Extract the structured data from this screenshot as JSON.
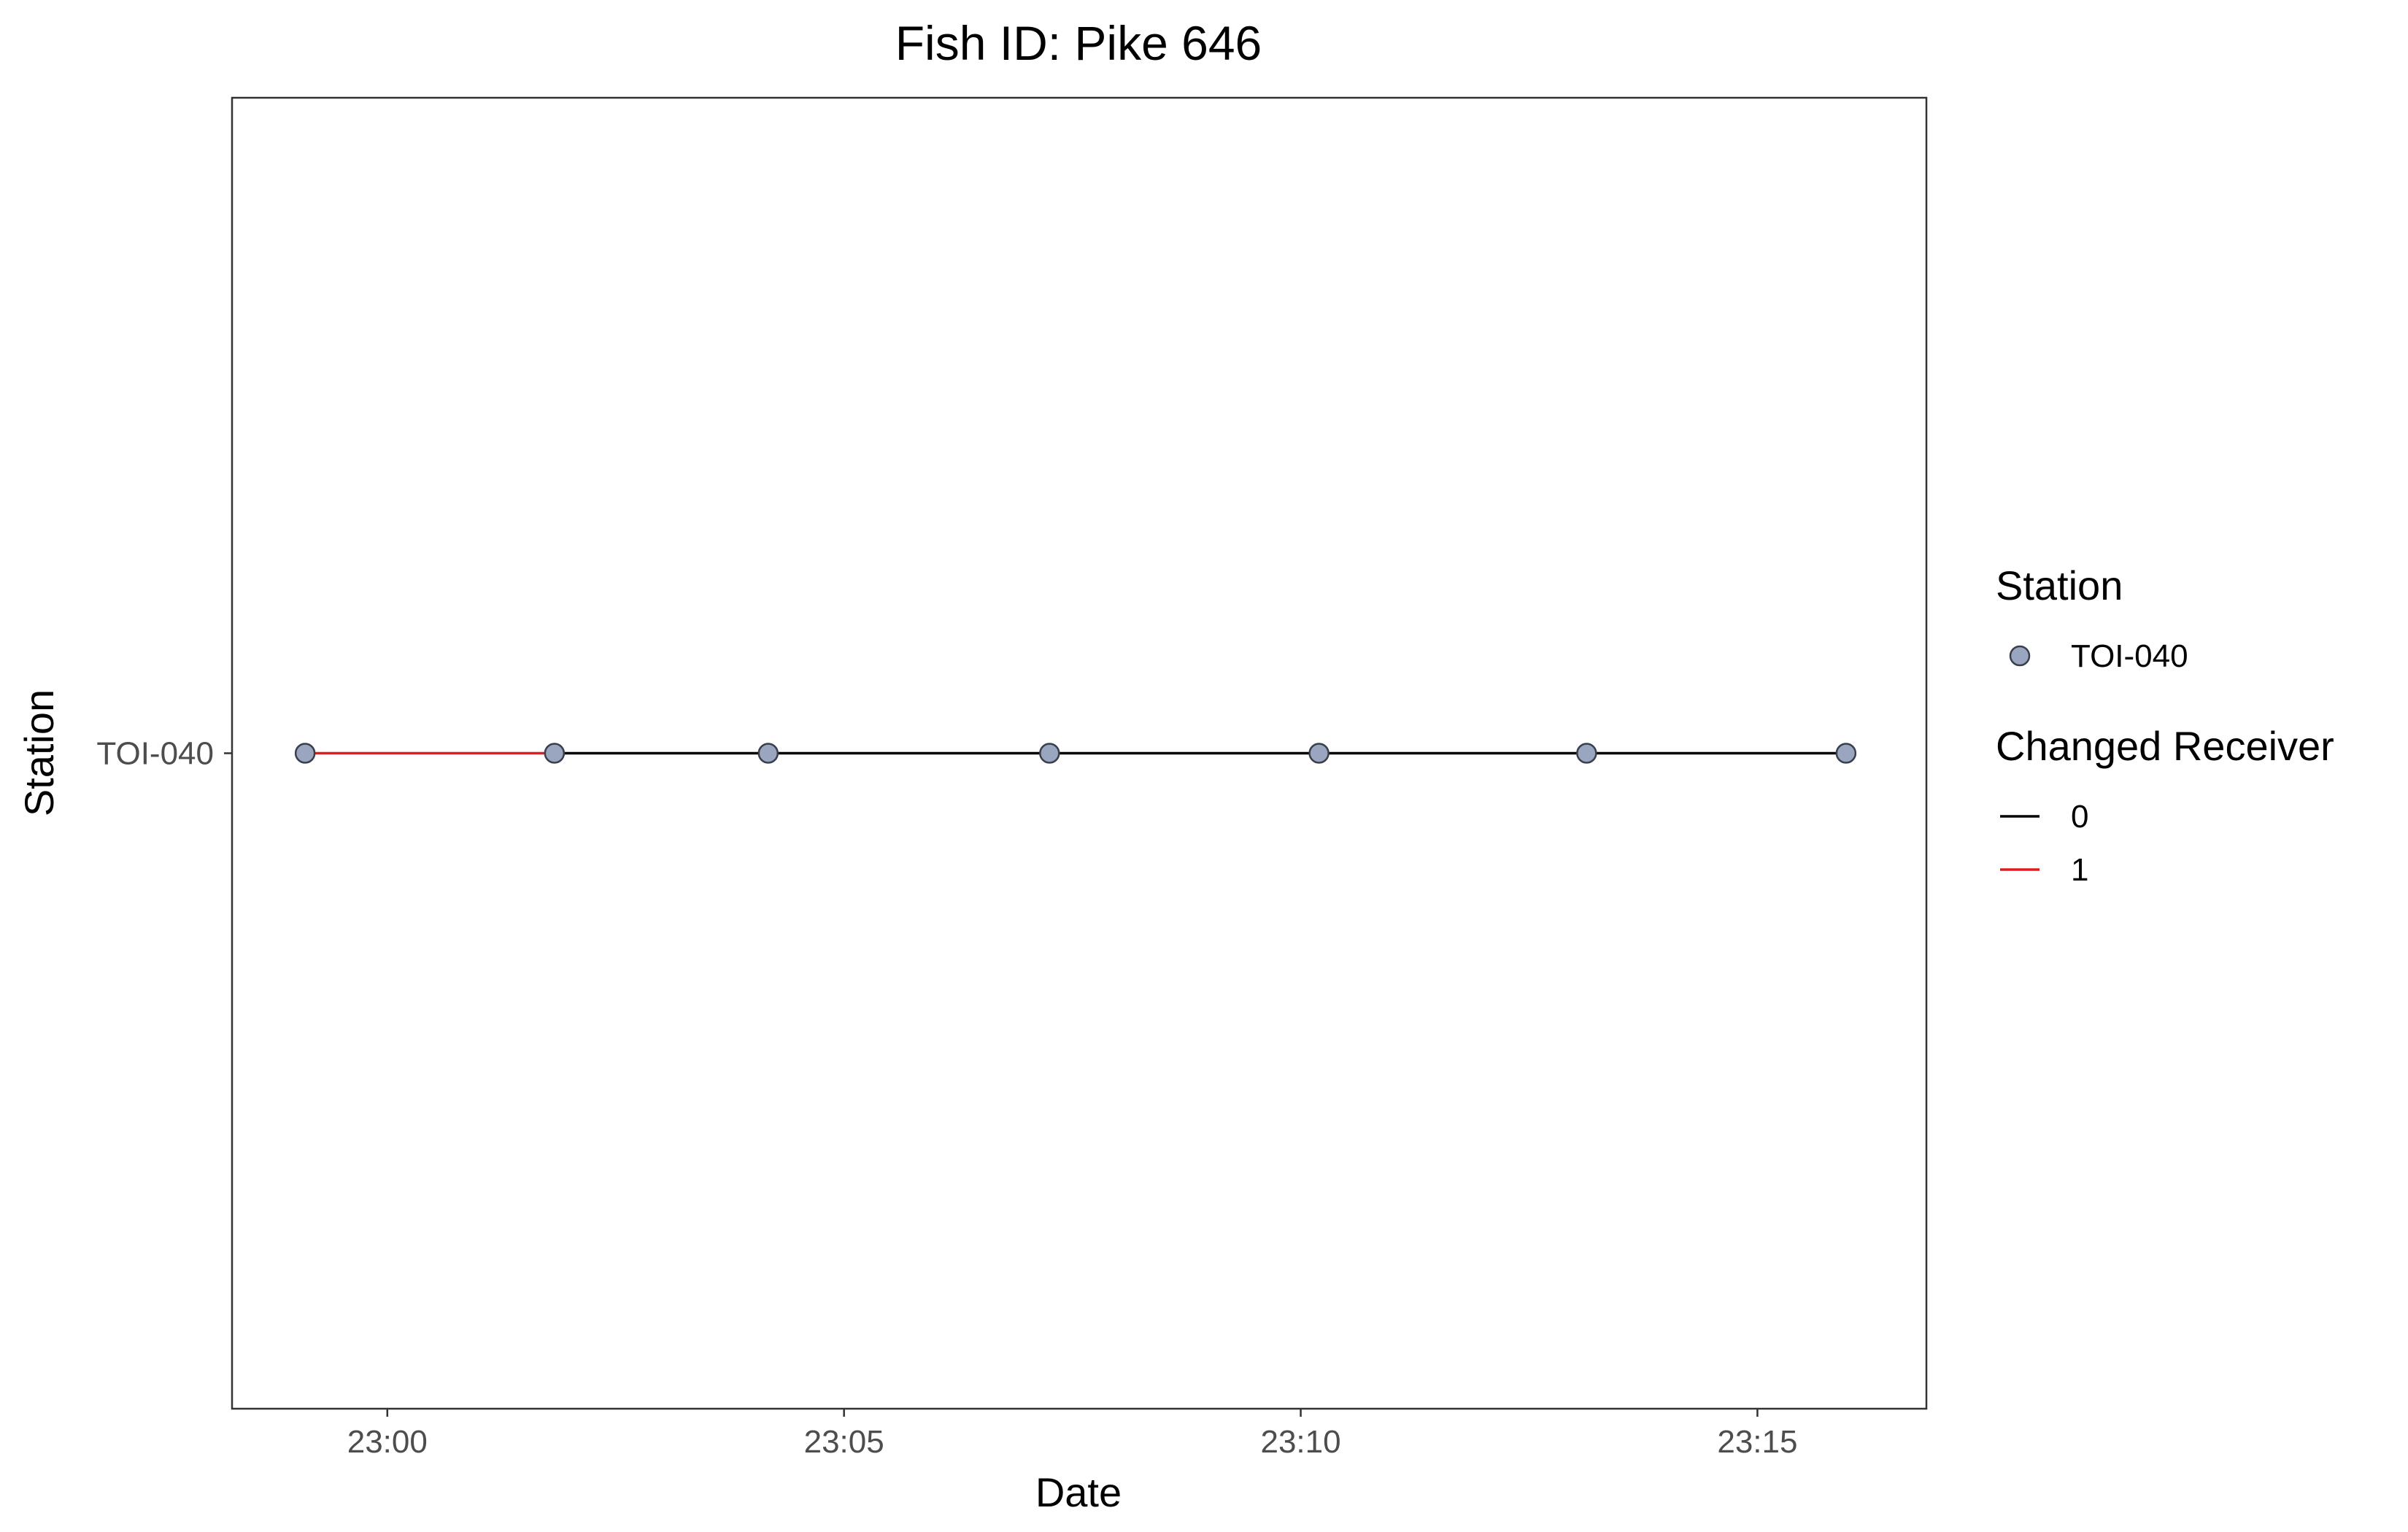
{
  "chart_data": {
    "type": "line",
    "title": "Fish ID: Pike 646",
    "xlabel": "Date",
    "ylabel": "Station",
    "x_ticks": [
      "23:00",
      "23:05",
      "23:10",
      "23:15"
    ],
    "x_tick_values": [
      0,
      5,
      10,
      15
    ],
    "y_categories": [
      "TOI-040"
    ],
    "xlim": [
      -1.7,
      16.85
    ],
    "points": [
      {
        "time": "22:59:05",
        "x": -0.9,
        "station": "TOI-040"
      },
      {
        "time": "23:01:50",
        "x": 1.83,
        "station": "TOI-040"
      },
      {
        "time": "23:04:10",
        "x": 4.17,
        "station": "TOI-040"
      },
      {
        "time": "23:07:15",
        "x": 7.25,
        "station": "TOI-040"
      },
      {
        "time": "23:10:12",
        "x": 10.2,
        "station": "TOI-040"
      },
      {
        "time": "23:13:08",
        "x": 13.13,
        "station": "TOI-040"
      },
      {
        "time": "23:15:58",
        "x": 15.97,
        "station": "TOI-040"
      }
    ],
    "segment_changed_receiver": [
      1,
      0,
      0,
      0,
      0,
      0
    ],
    "grid": false,
    "legend_position": "right",
    "legends": [
      {
        "title": "Station",
        "kind": "point",
        "items": [
          {
            "label": "TOI-040",
            "color": "#9aa5bf"
          }
        ]
      },
      {
        "title": "Changed Receiver",
        "kind": "line",
        "items": [
          {
            "label": "0",
            "color": "#000000"
          },
          {
            "label": "1",
            "color": "#e41a1c"
          }
        ]
      }
    ],
    "colors": {
      "point_fill": "#9aa5bf",
      "point_stroke": "#3a3f4d",
      "line_0": "#000000",
      "line_1": "#e41a1c",
      "panel_border": "#333333"
    }
  }
}
